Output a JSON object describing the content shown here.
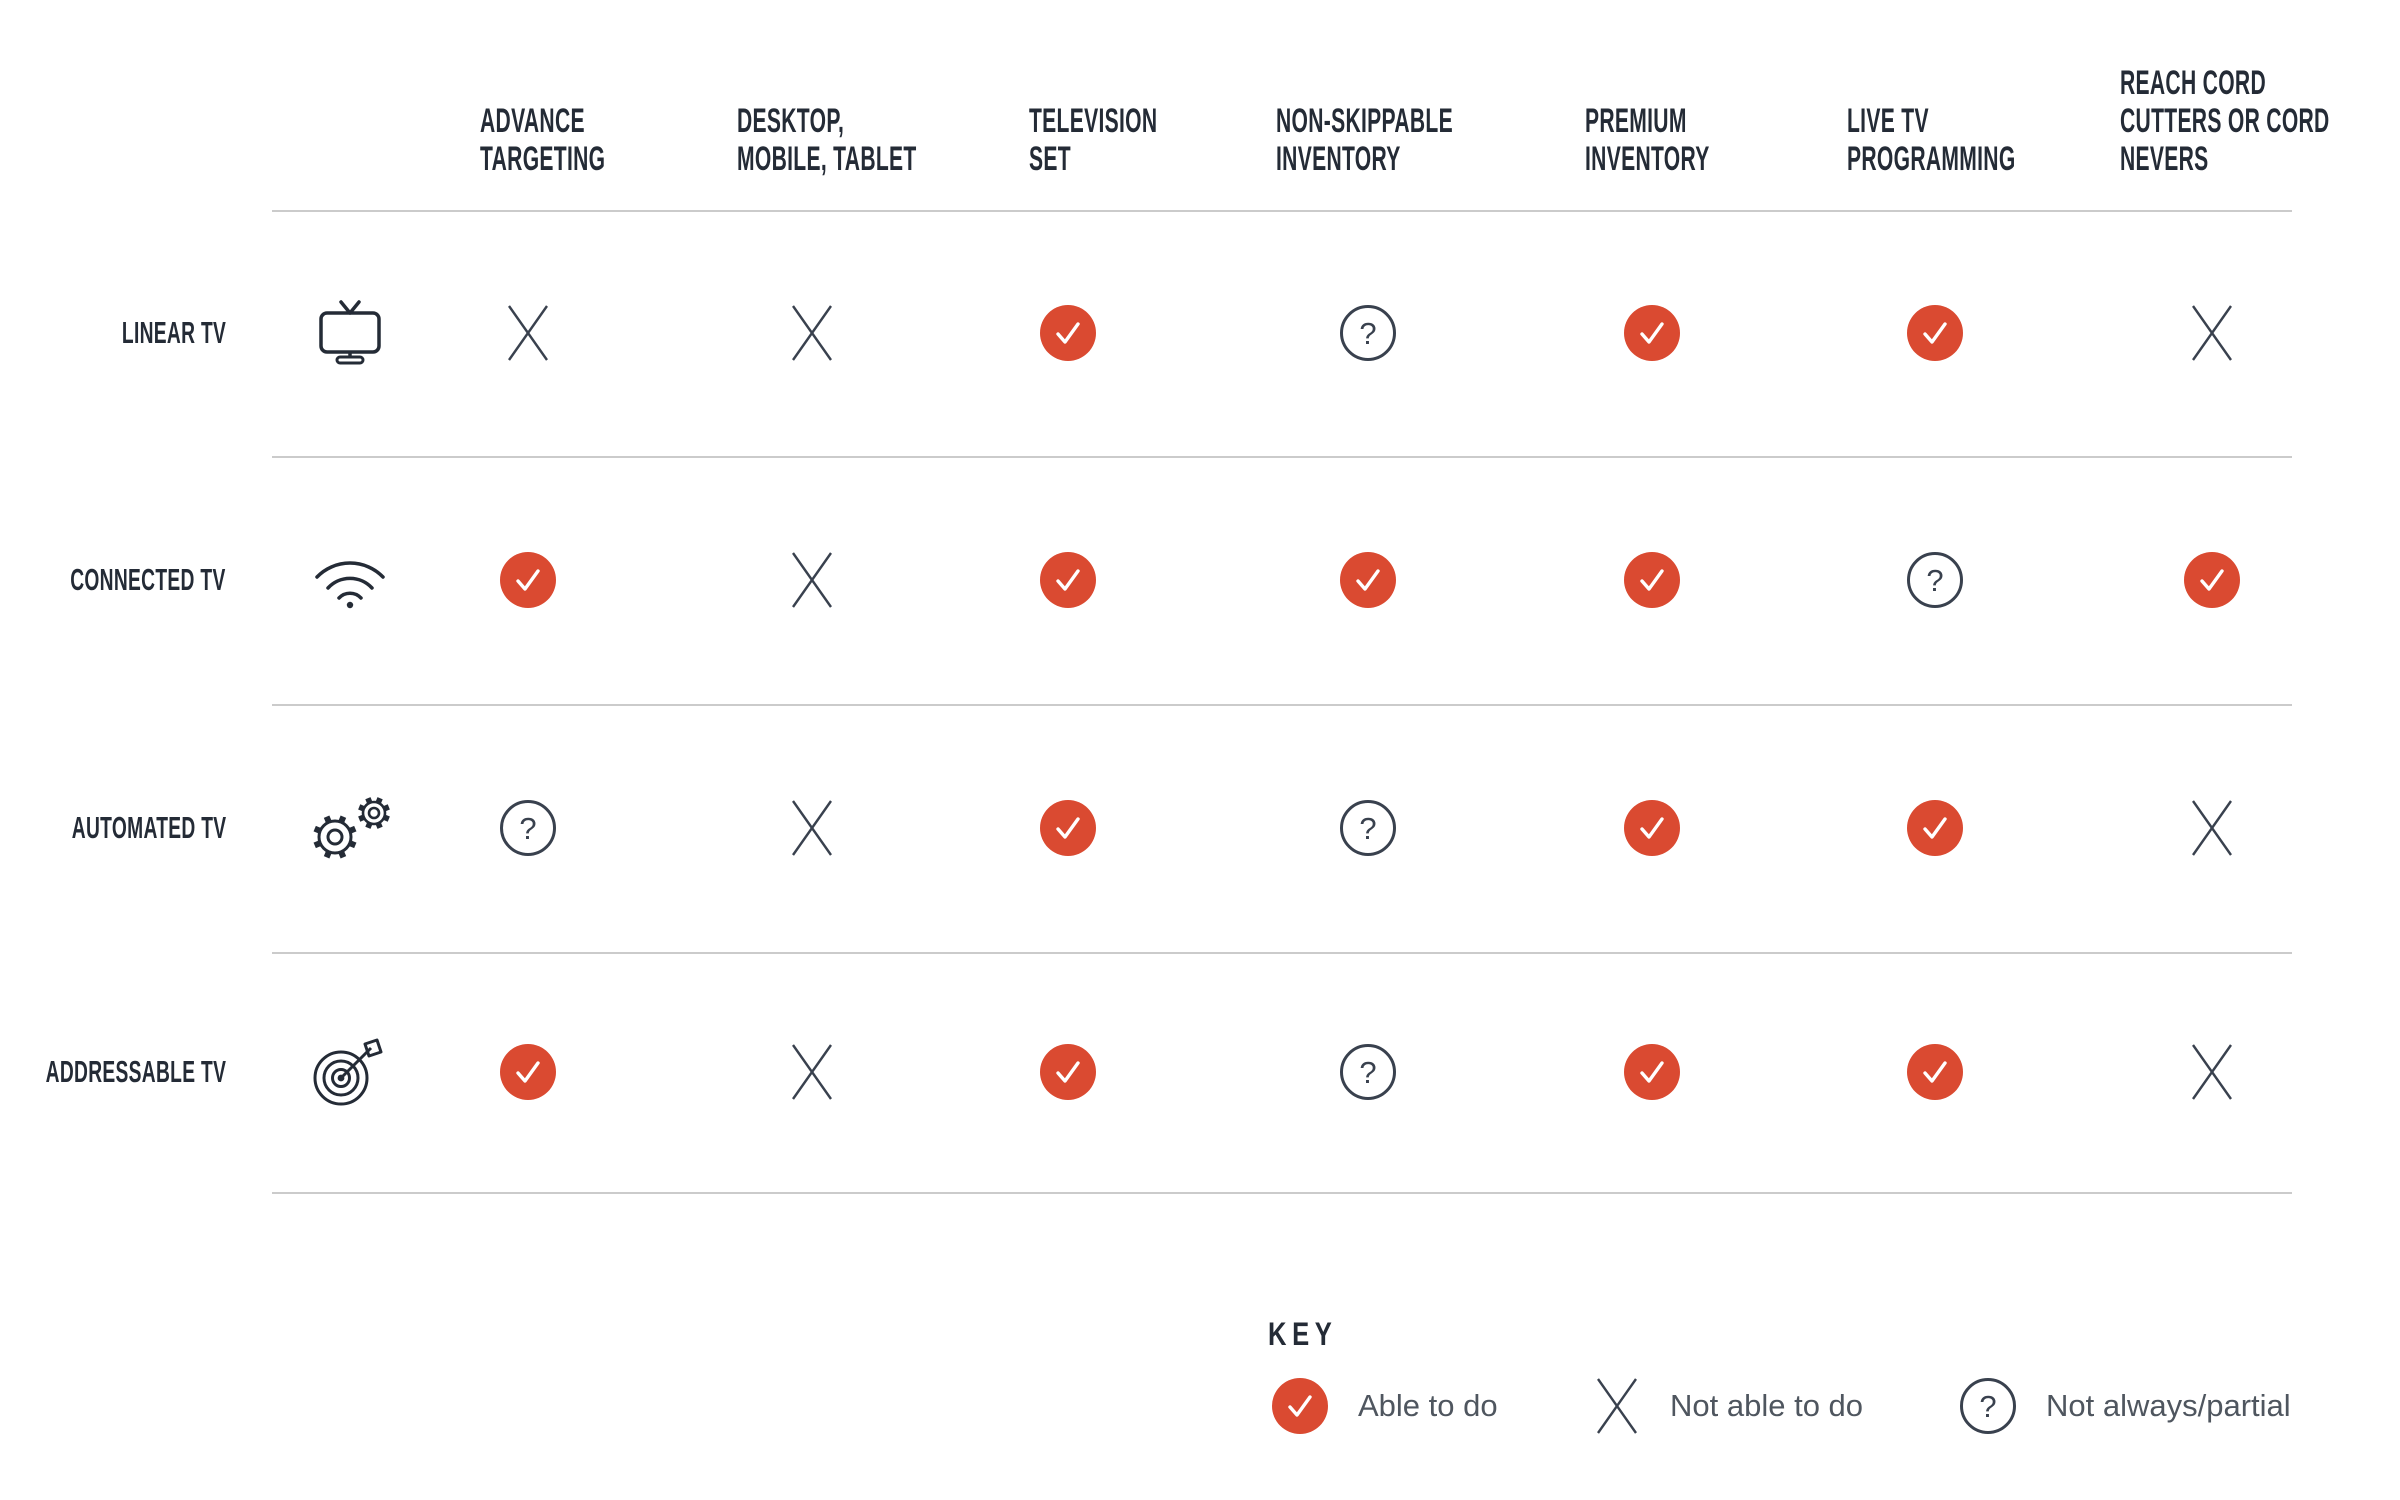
{
  "colors": {
    "accent": "#da4a31",
    "ink": "#242b36",
    "symbol": "#39414e",
    "line": "#cbcbcb",
    "legend_text": "#4f565f"
  },
  "columns": [
    {
      "lines": [
        "ADVANCE",
        "TARGETING"
      ]
    },
    {
      "lines": [
        "DESKTOP,",
        "MOBILE, TABLET"
      ]
    },
    {
      "lines": [
        "TELEVISION",
        "SET"
      ]
    },
    {
      "lines": [
        "NON-SKIPPABLE",
        "INVENTORY"
      ]
    },
    {
      "lines": [
        "PREMIUM",
        "INVENTORY"
      ]
    },
    {
      "lines": [
        "LIVE TV",
        "PROGRAMMING"
      ]
    },
    {
      "lines": [
        "REACH CORD",
        "CUTTERS OR CORD",
        "NEVERS"
      ]
    }
  ],
  "rows": [
    {
      "label": "LINEAR TV",
      "icon": "tv-icon",
      "cells": [
        "cross",
        "cross",
        "check",
        "question",
        "check",
        "check",
        "cross"
      ]
    },
    {
      "label": "CONNECTED TV",
      "icon": "wifi-icon",
      "cells": [
        "check",
        "cross",
        "check",
        "check",
        "check",
        "question",
        "check"
      ]
    },
    {
      "label": "AUTOMATED TV",
      "icon": "gears-icon",
      "cells": [
        "question",
        "cross",
        "check",
        "question",
        "check",
        "check",
        "cross"
      ]
    },
    {
      "label": "ADDRESSABLE TV",
      "icon": "target-icon",
      "cells": [
        "check",
        "cross",
        "check",
        "question",
        "check",
        "check",
        "cross"
      ]
    }
  ],
  "key": {
    "title": "KEY",
    "items": [
      {
        "symbol": "check",
        "label": "Able to do"
      },
      {
        "symbol": "cross",
        "label": "Not able to do"
      },
      {
        "symbol": "question",
        "label": "Not always/partial"
      }
    ]
  },
  "chart_data": {
    "type": "table",
    "title": "TV type capability comparison matrix",
    "columns": [
      "ADVANCE TARGETING",
      "DESKTOP, MOBILE, TABLET",
      "TELEVISION SET",
      "NON-SKIPPABLE INVENTORY",
      "PREMIUM INVENTORY",
      "LIVE TV PROGRAMMING",
      "REACH CORD CUTTERS OR CORD NEVERS"
    ],
    "rows": [
      {
        "name": "LINEAR TV",
        "values": [
          "not-able",
          "not-able",
          "able",
          "partial",
          "able",
          "able",
          "not-able"
        ]
      },
      {
        "name": "CONNECTED TV",
        "values": [
          "able",
          "not-able",
          "able",
          "able",
          "able",
          "partial",
          "able"
        ]
      },
      {
        "name": "AUTOMATED TV",
        "values": [
          "partial",
          "not-able",
          "able",
          "partial",
          "able",
          "able",
          "not-able"
        ]
      },
      {
        "name": "ADDRESSABLE TV",
        "values": [
          "able",
          "not-able",
          "able",
          "partial",
          "able",
          "able",
          "not-able"
        ]
      }
    ],
    "legend": {
      "able": "Able to do",
      "not-able": "Not able to do",
      "partial": "Not always/partial"
    },
    "layout": {
      "legend_position": "bottom",
      "grid": "horizontal-row-separators"
    }
  }
}
